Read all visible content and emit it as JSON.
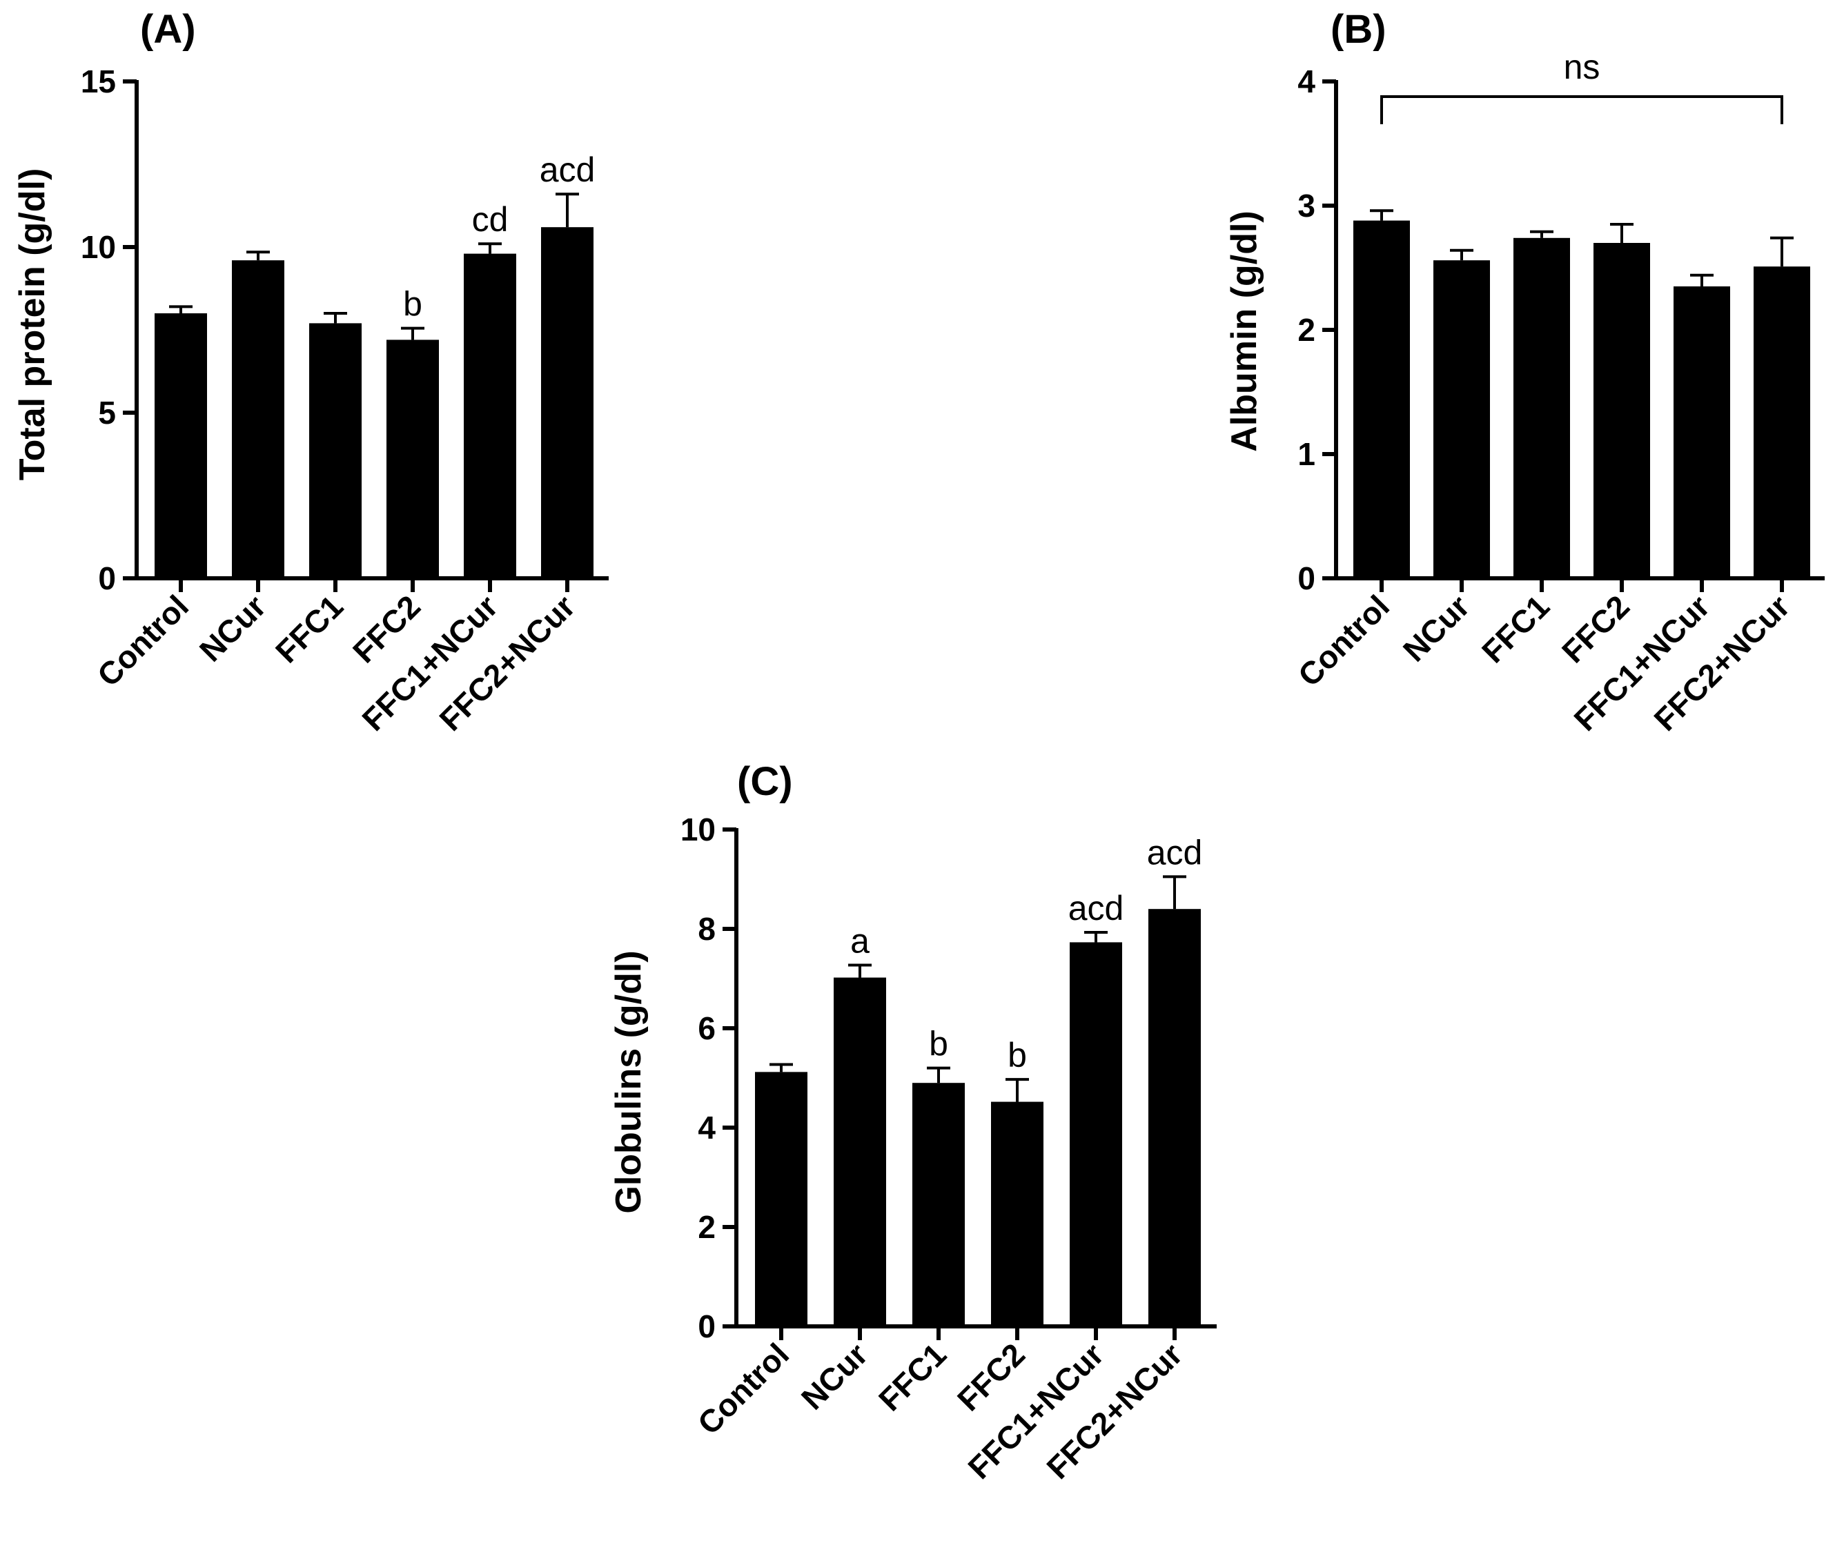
{
  "chart_data": [
    {
      "id": "A",
      "type": "bar",
      "panel_label": "(A)",
      "ylabel": "Total protein (g/dl)",
      "categories": [
        "Control",
        "NCur",
        "FFC1",
        "FFC2",
        "FFC1+NCur",
        "FFC2+NCur"
      ],
      "values": [
        8.0,
        9.6,
        7.7,
        7.2,
        9.8,
        10.6
      ],
      "errors": [
        0.2,
        0.25,
        0.3,
        0.35,
        0.3,
        1.0
      ],
      "annotations": [
        "",
        "",
        "",
        "b",
        "cd",
        "acd"
      ],
      "ylim": [
        0,
        15
      ],
      "yticks": [
        "0",
        "5",
        "10",
        "15"
      ],
      "ytick_values": [
        0,
        5,
        10,
        15
      ],
      "bracket": null
    },
    {
      "id": "B",
      "type": "bar",
      "panel_label": "(B)",
      "ylabel": "Albumin (g/dl)",
      "categories": [
        "Control",
        "NCur",
        "FFC1",
        "FFC2",
        "FFC1+NCur",
        "FFC2+NCur"
      ],
      "values": [
        2.88,
        2.56,
        2.74,
        2.7,
        2.35,
        2.51
      ],
      "errors": [
        0.08,
        0.08,
        0.05,
        0.15,
        0.09,
        0.23
      ],
      "annotations": [
        "",
        "",
        "",
        "",
        "",
        ""
      ],
      "ylim": [
        0,
        4
      ],
      "yticks": [
        "0",
        "1",
        "2",
        "3",
        "4"
      ],
      "ytick_values": [
        0,
        1,
        2,
        3,
        4
      ],
      "bracket": {
        "label": "ns",
        "from": 0,
        "to": 5
      }
    },
    {
      "id": "C",
      "type": "bar",
      "panel_label": "(C)",
      "ylabel": "Globulins (g/dl)",
      "categories": [
        "Control",
        "NCur",
        "FFC1",
        "FFC2",
        "FFC1+NCur",
        "FFC2+NCur"
      ],
      "values": [
        5.12,
        7.02,
        4.9,
        4.52,
        7.73,
        8.4
      ],
      "errors": [
        0.15,
        0.25,
        0.3,
        0.45,
        0.2,
        0.65
      ],
      "annotations": [
        "",
        "a",
        "b",
        "b",
        "acd",
        "acd"
      ],
      "ylim": [
        0,
        10
      ],
      "yticks": [
        "0",
        "2",
        "4",
        "6",
        "8",
        "10"
      ],
      "ytick_values": [
        0,
        2,
        4,
        6,
        8,
        10
      ],
      "bracket": null
    }
  ]
}
